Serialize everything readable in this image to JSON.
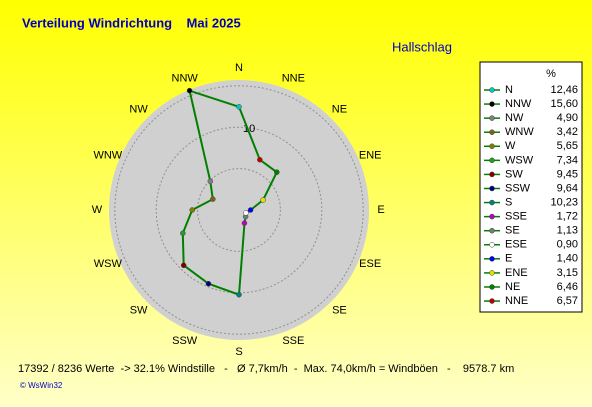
{
  "chart_data": {
    "type": "radar",
    "title": "Verteilung Windrichtung    Mai 2025",
    "subtitle": "Hallschlag",
    "legend_header": "%",
    "categories": [
      "N",
      "NNW",
      "NW",
      "WNW",
      "W",
      "WSW",
      "SW",
      "SSW",
      "S",
      "SSE",
      "SE",
      "ESE",
      "E",
      "ENE",
      "NE",
      "NNE"
    ],
    "values": [
      12.46,
      15.6,
      4.9,
      3.42,
      5.65,
      7.34,
      9.45,
      9.64,
      10.23,
      1.72,
      1.13,
      0.9,
      1.4,
      3.15,
      6.46,
      6.57
    ],
    "value_labels": [
      "12,46",
      "15,60",
      "4,90",
      "3,42",
      "5,65",
      "7,34",
      "9,45",
      "9,64",
      "10,23",
      "1,72",
      "1,13",
      "0,90",
      "1,40",
      "3,15",
      "6,46",
      "6,57"
    ],
    "marker_colors": [
      "#00c8c8",
      "#000000",
      "#808080",
      "#806020",
      "#808000",
      "#20a020",
      "#800000",
      "#000080",
      "#008080",
      "#c000c0",
      "#708070",
      "#ffffff",
      "#0000ff",
      "#e0e000",
      "#008000",
      "#c00000"
    ],
    "color": "#008000",
    "rlim": [
      0,
      15.7
    ],
    "rings": [
      5,
      10,
      15
    ],
    "rticks": [
      10
    ],
    "footer": "17392 / 8236 Werte  -> 32.1% Windstille   -   Ø 7,7km/h  -  Max. 74,0km/h = Windböen   -    9578.7 km",
    "credit": "© WsWin32"
  }
}
